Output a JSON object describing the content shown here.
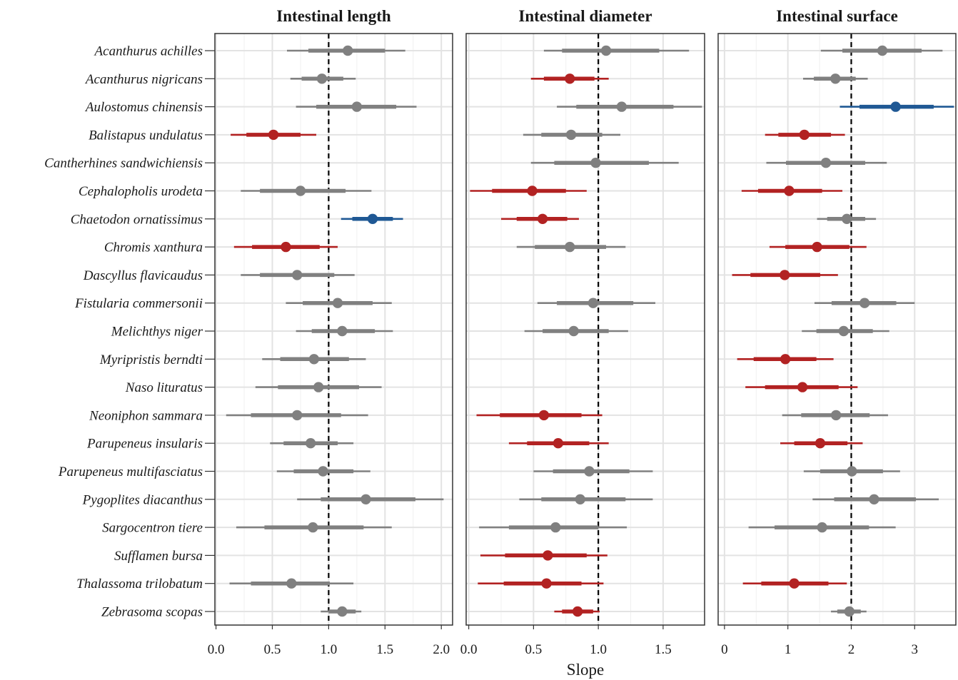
{
  "chart_data": {
    "type": "forest",
    "xlabel": "Slope",
    "reference_color": "#000000",
    "colors": {
      "neutral": "#808080",
      "below": "#b22222",
      "above": "#1f5894"
    },
    "species": [
      "Acanthurus achilles",
      "Acanthurus nigricans",
      "Aulostomus chinensis",
      "Balistapus undulatus",
      "Cantherhines sandwichiensis",
      "Cephalopholis urodeta",
      "Chaetodon ornatissimus",
      "Chromis xanthura",
      "Dascyllus flavicaudus",
      "Fistularia commersonii",
      "Melichthys niger",
      "Myripristis berndti",
      "Naso lituratus",
      "Neoniphon sammara",
      "Parupeneus insularis",
      "Parupeneus multifasciatus",
      "Pygoplites diacanthus",
      "Sargocentron tiere",
      "Sufflamen bursa",
      "Thalassoma trilobatum",
      "Zebrasoma scopas"
    ],
    "panels": [
      {
        "title": "Intestinal length",
        "xlim": [
          -0.01,
          2.1
        ],
        "ticks": [
          0.0,
          0.5,
          1.0,
          1.5,
          2.0
        ],
        "tick_labels": [
          "0.0",
          "0.5",
          "1.0",
          "1.5",
          "2.0"
        ],
        "reference": 1.0,
        "estimates": [
          1.17,
          0.94,
          1.25,
          0.51,
          null,
          0.75,
          1.39,
          0.62,
          0.72,
          1.08,
          1.12,
          0.87,
          0.91,
          0.72,
          0.84,
          0.95,
          1.33,
          0.86,
          null,
          0.67,
          1.12
        ],
        "inner_low": [
          0.82,
          0.76,
          0.89,
          0.27,
          null,
          0.39,
          1.21,
          0.32,
          0.39,
          0.77,
          0.85,
          0.57,
          0.55,
          0.31,
          0.6,
          0.69,
          0.93,
          0.43,
          null,
          0.31,
          1.0
        ],
        "inner_high": [
          1.5,
          1.13,
          1.6,
          0.75,
          null,
          1.15,
          1.57,
          0.92,
          1.05,
          1.39,
          1.41,
          1.18,
          1.27,
          1.11,
          1.08,
          1.22,
          1.77,
          1.31,
          null,
          1.01,
          1.24
        ],
        "outer_low": [
          0.63,
          0.66,
          0.71,
          0.13,
          null,
          0.22,
          1.11,
          0.16,
          0.22,
          0.62,
          0.71,
          0.41,
          0.35,
          0.09,
          0.48,
          0.54,
          0.72,
          0.18,
          null,
          0.12,
          0.93
        ],
        "outer_high": [
          1.68,
          1.24,
          1.78,
          0.89,
          null,
          1.38,
          1.66,
          1.08,
          1.23,
          1.56,
          1.57,
          1.33,
          1.47,
          1.35,
          1.22,
          1.37,
          2.02,
          1.56,
          null,
          1.22,
          1.29
        ],
        "status": [
          "neutral",
          "neutral",
          "neutral",
          "below",
          null,
          "neutral",
          "above",
          "below",
          "neutral",
          "neutral",
          "neutral",
          "neutral",
          "neutral",
          "neutral",
          "neutral",
          "neutral",
          "neutral",
          "neutral",
          null,
          "neutral",
          "neutral"
        ]
      },
      {
        "title": "Intestinal diameter",
        "xlim": [
          -0.02,
          1.82
        ],
        "ticks": [
          0.0,
          0.5,
          1.0,
          1.5
        ],
        "tick_labels": [
          "0.0",
          "0.5",
          "1.0",
          "1.5"
        ],
        "reference": 1.0,
        "estimates": [
          1.06,
          0.78,
          1.18,
          0.79,
          0.98,
          0.49,
          0.57,
          0.78,
          null,
          0.96,
          0.81,
          null,
          null,
          0.58,
          0.69,
          0.93,
          0.86,
          0.67,
          0.61,
          0.6,
          0.84
        ],
        "inner_low": [
          0.72,
          0.58,
          0.83,
          0.56,
          0.66,
          0.18,
          0.37,
          0.51,
          null,
          0.68,
          0.57,
          null,
          null,
          0.24,
          0.45,
          0.65,
          0.56,
          0.31,
          0.28,
          0.27,
          0.72
        ],
        "inner_high": [
          1.47,
          0.97,
          1.58,
          1.03,
          1.39,
          0.75,
          0.76,
          1.06,
          null,
          1.27,
          1.08,
          null,
          null,
          0.87,
          0.93,
          1.24,
          1.21,
          1.0,
          0.91,
          0.87,
          0.96
        ],
        "outer_low": [
          0.58,
          0.48,
          0.68,
          0.42,
          0.48,
          0.01,
          0.25,
          0.37,
          null,
          0.53,
          0.43,
          null,
          null,
          0.06,
          0.31,
          0.5,
          0.39,
          0.08,
          0.09,
          0.07,
          0.66
        ],
        "outer_high": [
          1.7,
          1.08,
          1.8,
          1.17,
          1.62,
          0.91,
          0.85,
          1.21,
          null,
          1.44,
          1.23,
          null,
          null,
          1.03,
          1.08,
          1.42,
          1.42,
          1.22,
          1.07,
          1.04,
          1.01
        ],
        "status": [
          "neutral",
          "below",
          "neutral",
          "neutral",
          "neutral",
          "below",
          "below",
          "neutral",
          null,
          "neutral",
          "neutral",
          null,
          null,
          "below",
          "below",
          "neutral",
          "neutral",
          "neutral",
          "below",
          "below",
          "below"
        ]
      },
      {
        "title": "Intestinal surface",
        "xlim": [
          -0.1,
          3.65
        ],
        "ticks": [
          0,
          1,
          2,
          3
        ],
        "tick_labels": [
          "0",
          "1",
          "2",
          "3"
        ],
        "reference": 2.0,
        "estimates": [
          2.49,
          1.75,
          2.7,
          1.26,
          1.6,
          1.02,
          1.93,
          1.46,
          0.95,
          2.21,
          1.88,
          0.96,
          1.23,
          1.76,
          1.51,
          2.01,
          2.36,
          1.54,
          null,
          1.1,
          1.97
        ],
        "inner_low": [
          1.86,
          1.41,
          2.13,
          0.85,
          0.97,
          0.53,
          1.62,
          0.96,
          0.41,
          1.69,
          1.45,
          0.46,
          0.64,
          1.21,
          1.1,
          1.51,
          1.73,
          0.79,
          null,
          0.58,
          1.78
        ],
        "inner_high": [
          3.11,
          2.07,
          3.3,
          1.68,
          2.22,
          1.54,
          2.22,
          1.97,
          1.51,
          2.71,
          2.34,
          1.45,
          1.8,
          2.29,
          1.94,
          2.5,
          3.02,
          2.28,
          null,
          1.64,
          2.15
        ],
        "outer_low": [
          1.52,
          1.24,
          1.82,
          0.64,
          0.66,
          0.27,
          1.46,
          0.71,
          0.12,
          1.42,
          1.22,
          0.2,
          0.33,
          0.91,
          0.88,
          1.25,
          1.39,
          0.38,
          null,
          0.29,
          1.68
        ],
        "outer_high": [
          3.44,
          2.26,
          3.62,
          1.9,
          2.56,
          1.86,
          2.39,
          2.24,
          1.79,
          3.0,
          2.6,
          1.72,
          2.1,
          2.58,
          2.18,
          2.77,
          3.38,
          2.7,
          null,
          1.93,
          2.24
        ],
        "status": [
          "neutral",
          "neutral",
          "above",
          "below",
          "neutral",
          "below",
          "neutral",
          "below",
          "below",
          "neutral",
          "neutral",
          "below",
          "below",
          "neutral",
          "below",
          "neutral",
          "neutral",
          "neutral",
          null,
          "below",
          "neutral"
        ]
      }
    ]
  }
}
